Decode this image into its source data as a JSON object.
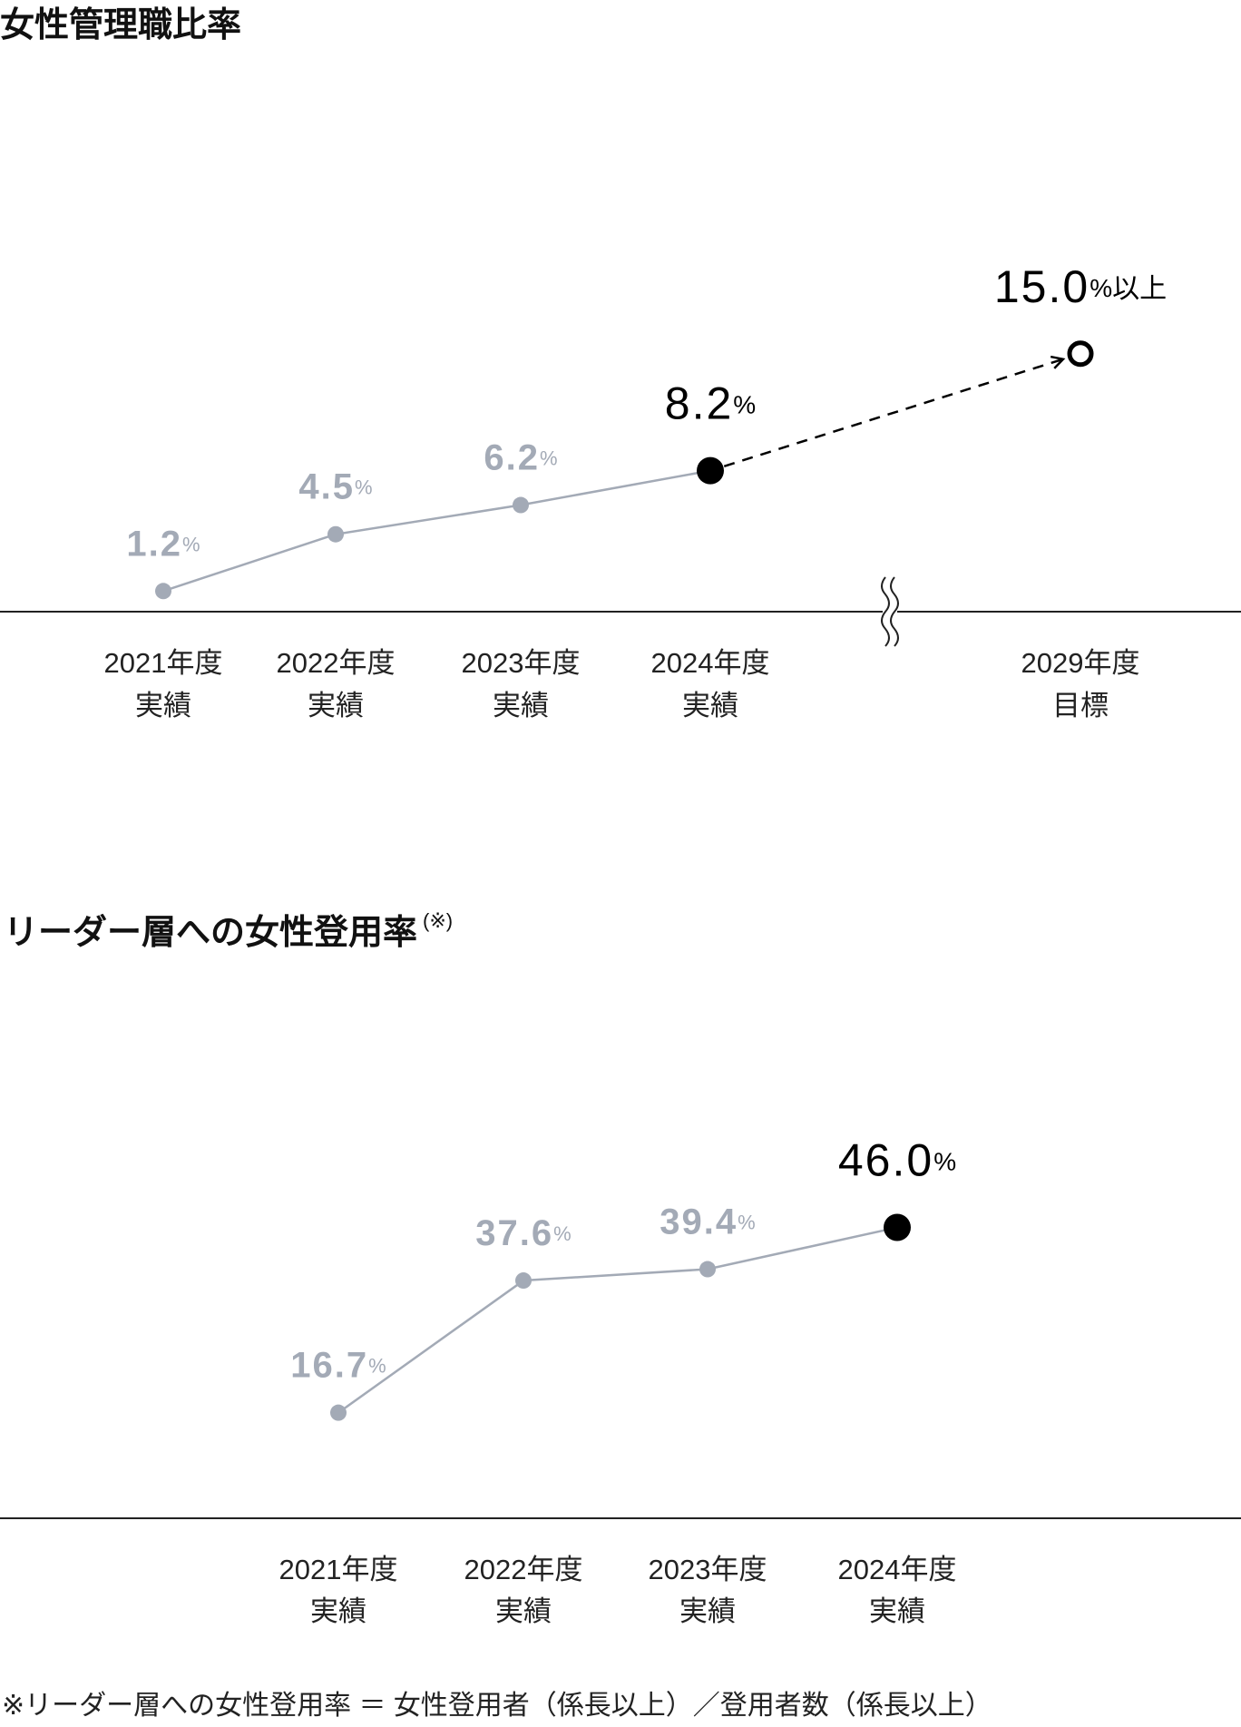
{
  "chart_data": [
    {
      "type": "line",
      "title": "女性管理職比率",
      "categories": [
        "2021年度",
        "2022年度",
        "2023年度",
        "2024年度",
        "2029年度"
      ],
      "category_sublabels": [
        "実績",
        "実績",
        "実績",
        "実績",
        "目標"
      ],
      "values": [
        1.2,
        4.5,
        6.2,
        8.2,
        15.0
      ],
      "value_labels": [
        "1.2",
        "4.5",
        "6.2",
        "8.2",
        "15.0"
      ],
      "value_unit": "%",
      "target_suffix": "以上",
      "point_styles": [
        "past",
        "past",
        "past",
        "latest",
        "target"
      ],
      "axis_break": true,
      "color": "#a3aab6",
      "highlight_color": "#000000",
      "ylim": [
        0,
        20
      ]
    },
    {
      "type": "line",
      "title": "リーダー層への女性登用率",
      "title_note": "(※)",
      "categories": [
        "2021年度",
        "2022年度",
        "2023年度",
        "2024年度"
      ],
      "category_sublabels": [
        "実績",
        "実績",
        "実績",
        "実績"
      ],
      "values": [
        16.7,
        37.6,
        39.4,
        46.0
      ],
      "value_labels": [
        "16.7",
        "37.6",
        "39.4",
        "46.0"
      ],
      "value_unit": "%",
      "point_styles": [
        "past",
        "past",
        "past",
        "latest"
      ],
      "axis_break": false,
      "color": "#a3aab6",
      "highlight_color": "#000000",
      "ylim": [
        0,
        60
      ]
    }
  ],
  "footnote": "※リーダー層への女性登用率 ＝ 女性登用者（係長以上）／登用者数（係長以上）"
}
